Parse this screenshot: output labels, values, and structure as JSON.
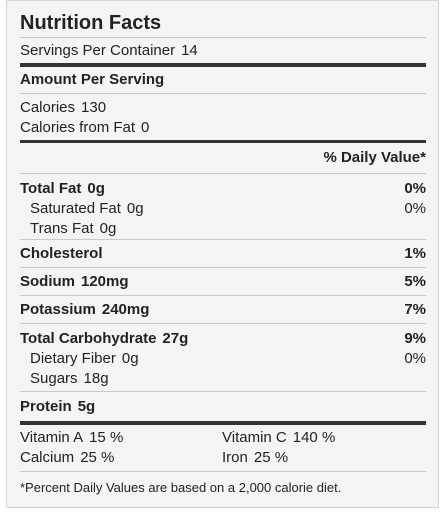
{
  "title": "Nutrition Facts",
  "servings": {
    "label": "Servings Per Container",
    "value": "14"
  },
  "amount_header": "Amount Per Serving",
  "calories": {
    "label": "Calories",
    "value": "130"
  },
  "calories_fat": {
    "label": "Calories from Fat",
    "value": "0"
  },
  "dv_header": "% Daily Value*",
  "nutrients": {
    "total_fat": {
      "label": "Total Fat",
      "amount": "0g",
      "dv": "0%"
    },
    "saturated_fat": {
      "label": "Saturated Fat",
      "amount": "0g",
      "dv": "0%"
    },
    "trans_fat": {
      "label": "Trans Fat",
      "amount": "0g"
    },
    "cholesterol": {
      "label": "Cholesterol",
      "dv": "1%"
    },
    "sodium": {
      "label": "Sodium",
      "amount": "120mg",
      "dv": "5%"
    },
    "potassium": {
      "label": "Potassium",
      "amount": "240mg",
      "dv": "7%"
    },
    "total_carb": {
      "label": "Total Carbohydrate",
      "amount": "27g",
      "dv": "9%"
    },
    "fiber": {
      "label": "Dietary Fiber",
      "amount": "0g",
      "dv": "0%"
    },
    "sugars": {
      "label": "Sugars",
      "amount": "18g"
    },
    "protein": {
      "label": "Protein",
      "amount": "5g"
    }
  },
  "vitamins": {
    "vit_a": {
      "label": "Vitamin A",
      "value": "15 %"
    },
    "vit_c": {
      "label": "Vitamin C",
      "value": "140 %"
    },
    "calcium": {
      "label": "Calcium",
      "value": "25 %"
    },
    "iron": {
      "label": "Iron",
      "value": "25 %"
    }
  },
  "footnote": "*Percent Daily Values are based on a 2,000 calorie diet."
}
